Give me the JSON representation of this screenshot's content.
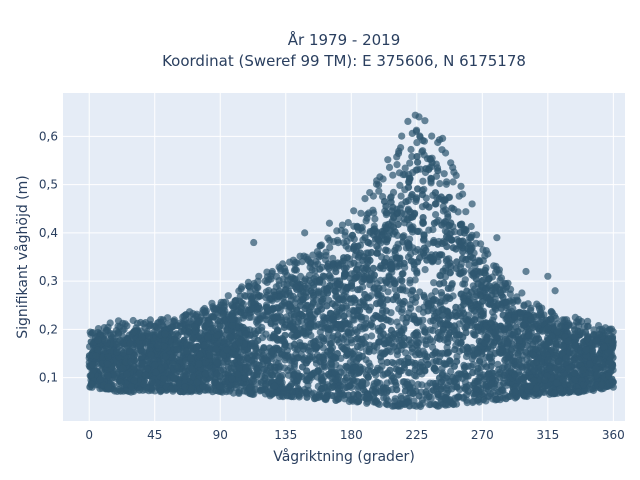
{
  "chart_data": {
    "type": "scatter",
    "title_line1": "År 1979 - 2019",
    "title_line2": "Koordinat (Sweref 99 TM): E 375606, N 6175178",
    "xlabel": "Vågriktning (grader)",
    "ylabel": "Signifikant våghöjd (m)",
    "xlim": [
      -18,
      368
    ],
    "ylim": [
      0.01,
      0.69
    ],
    "x_ticks": [
      0,
      45,
      90,
      135,
      180,
      225,
      270,
      315,
      360
    ],
    "x_tick_labels": [
      "0",
      "45",
      "90",
      "135",
      "180",
      "225",
      "270",
      "315",
      "360"
    ],
    "y_ticks": [
      0.1,
      0.2,
      0.3,
      0.4,
      0.5,
      0.6
    ],
    "y_tick_labels": [
      "0,1",
      "0,2",
      "0,3",
      "0,4",
      "0,5",
      "0,6"
    ],
    "grid": true,
    "marker_color": "#2f5770",
    "envelope": {
      "x": [
        0,
        20,
        45,
        60,
        90,
        110,
        135,
        160,
        180,
        195,
        210,
        220,
        225,
        232,
        240,
        255,
        270,
        285,
        300,
        315,
        340,
        360
      ],
      "y_min": [
        0.08,
        0.07,
        0.07,
        0.07,
        0.07,
        0.065,
        0.06,
        0.055,
        0.05,
        0.045,
        0.04,
        0.04,
        0.04,
        0.04,
        0.04,
        0.045,
        0.05,
        0.055,
        0.06,
        0.065,
        0.07,
        0.08
      ],
      "y_max": [
        0.2,
        0.22,
        0.22,
        0.23,
        0.26,
        0.3,
        0.34,
        0.38,
        0.44,
        0.5,
        0.58,
        0.64,
        0.66,
        0.66,
        0.62,
        0.5,
        0.38,
        0.31,
        0.27,
        0.24,
        0.22,
        0.2
      ]
    },
    "outliers": [
      {
        "x": 113,
        "y": 0.38
      },
      {
        "x": 148,
        "y": 0.4
      },
      {
        "x": 165,
        "y": 0.42
      },
      {
        "x": 263,
        "y": 0.46
      },
      {
        "x": 280,
        "y": 0.39
      },
      {
        "x": 300,
        "y": 0.32
      },
      {
        "x": 315,
        "y": 0.31
      },
      {
        "x": 320,
        "y": 0.28
      }
    ]
  }
}
